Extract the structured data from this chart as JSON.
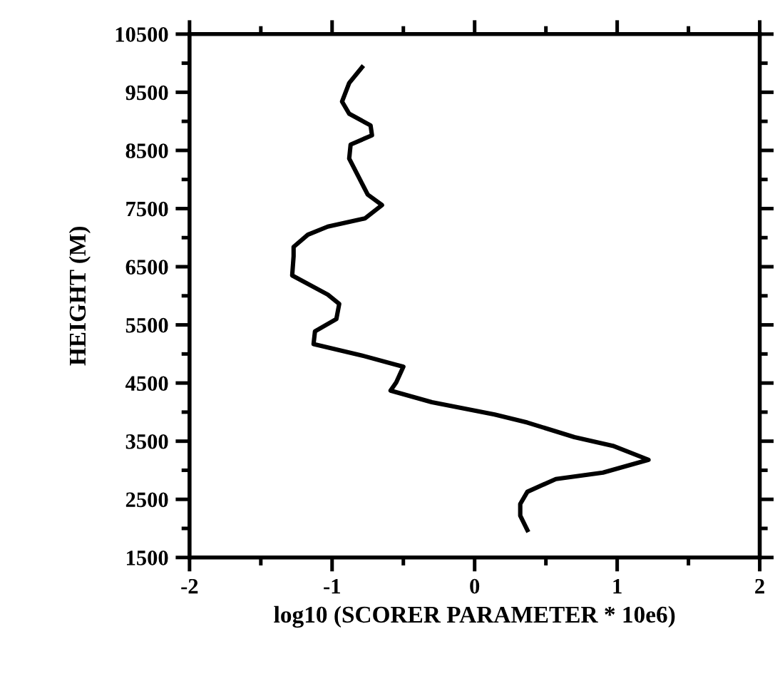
{
  "chart_data": {
    "type": "line",
    "xlabel": "log10 (SCORER PARAMETER * 10e6)",
    "ylabel": "HEIGHT (M)",
    "xlim": [
      -2,
      2
    ],
    "ylim": [
      1500,
      10500
    ],
    "xticks": [
      -2,
      {
        "value": -1.5,
        "label": null
      },
      -1,
      {
        "value": -0.5,
        "label": null
      },
      0,
      {
        "value": 0.5,
        "label": null
      },
      1,
      {
        "value": 1.5,
        "label": null
      },
      2
    ],
    "yticks": [
      1500,
      {
        "value": 2000,
        "label": null
      },
      2500,
      {
        "value": 3000,
        "label": null
      },
      3500,
      {
        "value": 4000,
        "label": null
      },
      4500,
      {
        "value": 5000,
        "label": null
      },
      5500,
      {
        "value": 6000,
        "label": null
      },
      6500,
      {
        "value": 7000,
        "label": null
      },
      7500,
      {
        "value": 8000,
        "label": null
      },
      8500,
      {
        "value": 9000,
        "label": null
      },
      9500,
      {
        "value": 10000,
        "label": null
      },
      10500
    ],
    "grid": false,
    "legend": false,
    "marker": "none",
    "line_style": "solid",
    "series": [
      {
        "color": "#000000",
        "x": [
          0.37,
          0.32,
          0.32,
          0.37,
          0.57,
          0.9,
          1.22,
          0.97,
          0.7,
          0.37,
          0.14,
          -0.3,
          -0.59,
          -0.55,
          -0.5,
          -0.77,
          -1.13,
          -1.12,
          -0.97,
          -0.95,
          -1.03,
          -1.28,
          -1.27,
          -1.27,
          -1.17,
          -1.03,
          -0.77,
          -0.65,
          -0.75,
          -0.88,
          -0.87,
          -0.72,
          -0.73,
          -0.88,
          -0.93,
          -0.88,
          -0.79
        ],
        "values": [
          1970,
          2220,
          2420,
          2630,
          2850,
          2960,
          3180,
          3420,
          3570,
          3820,
          3960,
          4170,
          4370,
          4510,
          4780,
          4960,
          5170,
          5390,
          5600,
          5860,
          6020,
          6350,
          6680,
          6840,
          7050,
          7190,
          7330,
          7560,
          7740,
          8360,
          8600,
          8760,
          8930,
          9130,
          9340,
          9660,
          9930
        ]
      }
    ]
  }
}
